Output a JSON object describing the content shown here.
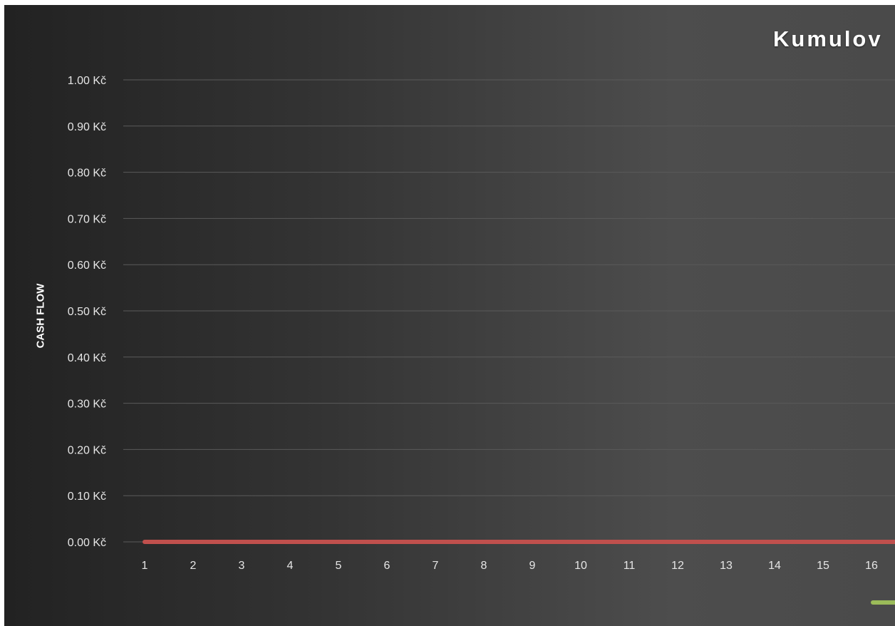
{
  "chart_data": {
    "type": "line",
    "title": "Kumulov",
    "xlabel": "",
    "ylabel": "CASH FLOW",
    "y_ticks": [
      "0.00 Kč",
      "0.10 Kč",
      "0.20 Kč",
      "0.30 Kč",
      "0.40 Kč",
      "0.50 Kč",
      "0.60 Kč",
      "0.70 Kč",
      "0.80 Kč",
      "0.90 Kč",
      "1.00 Kč"
    ],
    "ylim": [
      0,
      1
    ],
    "categories": [
      "1",
      "2",
      "3",
      "4",
      "5",
      "6",
      "7",
      "8",
      "9",
      "10",
      "11",
      "12",
      "13",
      "14",
      "15",
      "16"
    ],
    "series": [
      {
        "color": "#c0504d",
        "values": [
          0,
          0,
          0,
          0,
          0,
          0,
          0,
          0,
          0,
          0,
          0,
          0,
          0,
          0,
          0,
          0
        ]
      }
    ],
    "legend_swatch_color": "#9bbb59",
    "grid": true
  },
  "colors": {
    "background_dark": "#222222",
    "background_light": "#4d4d4d",
    "gridline": "#5a5a5a",
    "text": "#ffffff"
  }
}
